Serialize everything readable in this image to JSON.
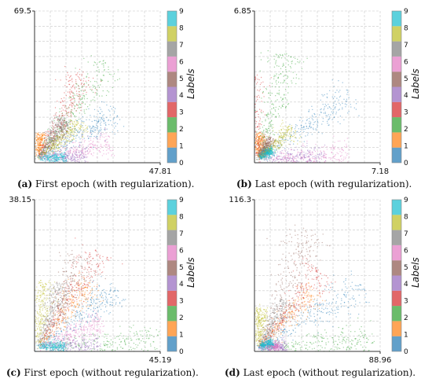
{
  "palette": [
    "#1f77b4",
    "#ff7f0e",
    "#2ca02c",
    "#d62728",
    "#9467bd",
    "#8c564b",
    "#e377c2",
    "#7f7f7f",
    "#bcbd22",
    "#17becf"
  ],
  "colorbar": {
    "label": "Labels",
    "ticks": [
      "0",
      "1",
      "2",
      "3",
      "4",
      "5",
      "6",
      "7",
      "8",
      "9"
    ]
  },
  "chart_data": [
    {
      "type": "scatter",
      "caption_letter": "(a)",
      "caption_text": "First epoch (with regularization).",
      "xmax_label": "47.81",
      "ymax_label": "69.5",
      "xlim": [
        0,
        47.81
      ],
      "ylim": [
        0,
        69.5
      ],
      "grid": true,
      "series": [
        {
          "label": 0,
          "angle_deg": 30,
          "length": 0.68
        },
        {
          "label": 1,
          "angle_deg": 88,
          "length": 0.18
        },
        {
          "label": 2,
          "angle_deg": 54,
          "length": 0.88
        },
        {
          "label": 3,
          "angle_deg": 62,
          "length": 0.72
        },
        {
          "label": 4,
          "angle_deg": 1,
          "length": 0.36
        },
        {
          "label": 5,
          "angle_deg": 52,
          "length": 0.32
        },
        {
          "label": 6,
          "angle_deg": 12,
          "length": 0.55
        },
        {
          "label": 7,
          "angle_deg": 58,
          "length": 0.35
        },
        {
          "label": 8,
          "angle_deg": 40,
          "length": 0.42
        },
        {
          "label": 9,
          "angle_deg": 0.5,
          "length": 0.2
        }
      ]
    },
    {
      "type": "scatter",
      "caption_letter": "(b)",
      "caption_text": "Last epoch (with regularization).",
      "xmax_label": "7.18",
      "ymax_label": "6.85",
      "xlim": [
        0,
        7.18
      ],
      "ylim": [
        0,
        6.85
      ],
      "grid": true,
      "series": [
        {
          "label": 0,
          "angle_deg": 34,
          "length": 0.84
        },
        {
          "label": 1,
          "angle_deg": 89,
          "length": 0.18
        },
        {
          "label": 2,
          "angle_deg": 75,
          "length": 0.82
        },
        {
          "label": 3,
          "angle_deg": 97,
          "length": 0.62
        },
        {
          "label": 4,
          "angle_deg": 0.5,
          "length": 0.5
        },
        {
          "label": 5,
          "angle_deg": 60,
          "length": 0.18
        },
        {
          "label": 6,
          "angle_deg": 2,
          "length": 0.68
        },
        {
          "label": 7,
          "angle_deg": 45,
          "length": 0.1
        },
        {
          "label": 8,
          "angle_deg": 40,
          "length": 0.34
        },
        {
          "label": 9,
          "angle_deg": 30,
          "length": 0.12
        }
      ]
    },
    {
      "type": "scatter",
      "caption_letter": "(c)",
      "caption_text": "First epoch (without regularization).",
      "xmax_label": "45.19",
      "ymax_label": "38.15",
      "xlim": [
        0,
        45.19
      ],
      "ylim": [
        0,
        38.15
      ],
      "grid": true,
      "series": [
        {
          "label": 0,
          "angle_deg": 36,
          "length": 0.74
        },
        {
          "label": 1,
          "angle_deg": 52,
          "length": 0.62
        },
        {
          "label": 2,
          "angle_deg": 2,
          "length": 0.9
        },
        {
          "label": 3,
          "angle_deg": 58,
          "length": 0.86
        },
        {
          "label": 4,
          "angle_deg": 0.3,
          "length": 0.45
        },
        {
          "label": 5,
          "angle_deg": 64,
          "length": 0.76
        },
        {
          "label": 6,
          "angle_deg": 22,
          "length": 0.5
        },
        {
          "label": 7,
          "angle_deg": 70,
          "length": 0.5
        },
        {
          "label": 8,
          "angle_deg": 88,
          "length": 0.5
        },
        {
          "label": 9,
          "angle_deg": 0.5,
          "length": 0.2
        }
      ]
    },
    {
      "type": "scatter",
      "caption_letter": "(d)",
      "caption_text": "Last epoch (without regularization).",
      "xmax_label": "88.96",
      "ymax_label": "116.3",
      "xlim": [
        0,
        88.96
      ],
      "ylim": [
        0,
        116.3
      ],
      "grid": true,
      "series": [
        {
          "label": 0,
          "angle_deg": 30,
          "length": 0.9
        },
        {
          "label": 1,
          "angle_deg": 45,
          "length": 0.6
        },
        {
          "label": 2,
          "angle_deg": 3,
          "length": 0.86
        },
        {
          "label": 3,
          "angle_deg": 50,
          "length": 0.74
        },
        {
          "label": 4,
          "angle_deg": 1,
          "length": 0.2
        },
        {
          "label": 5,
          "angle_deg": 66,
          "length": 0.95
        },
        {
          "label": 6,
          "angle_deg": 1.5,
          "length": 0.15
        },
        {
          "label": 7,
          "angle_deg": 58,
          "length": 0.4
        },
        {
          "label": 8,
          "angle_deg": 89,
          "length": 0.3
        },
        {
          "label": 9,
          "angle_deg": 20,
          "length": 0.1
        }
      ]
    }
  ]
}
